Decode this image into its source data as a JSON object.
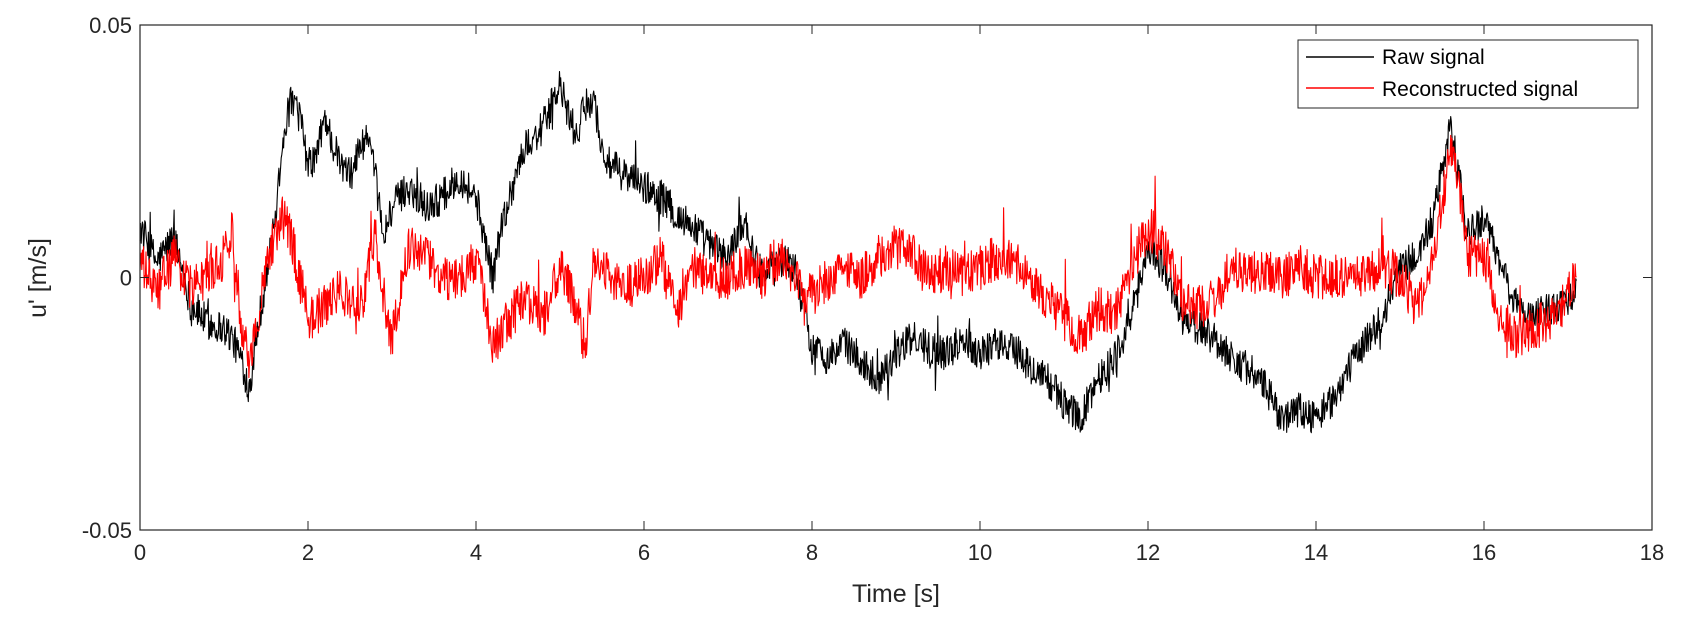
{
  "chart_data": {
    "type": "line",
    "title": "",
    "xlabel": "Time [s]",
    "ylabel": "u' [m/s]",
    "xlim": [
      0,
      18
    ],
    "ylim": [
      -0.05,
      0.05
    ],
    "xticks": [
      0,
      2,
      4,
      6,
      8,
      10,
      12,
      14,
      16,
      18
    ],
    "xtick_labels": [
      "0",
      "2",
      "4",
      "6",
      "8",
      "10",
      "12",
      "14",
      "16",
      "18"
    ],
    "yticks": [
      -0.05,
      0,
      0.05
    ],
    "ytick_labels": [
      "-0.05",
      "0",
      "0.05"
    ],
    "grid": false,
    "legend_position": "top-right",
    "series": [
      {
        "name": "Raw signal",
        "color": "#000000",
        "noise": 0.0035,
        "x": [
          0,
          0.2,
          0.4,
          0.5,
          0.6,
          0.8,
          1.0,
          1.1,
          1.2,
          1.3,
          1.4,
          1.5,
          1.6,
          1.7,
          1.8,
          1.9,
          2.0,
          2.1,
          2.2,
          2.3,
          2.4,
          2.5,
          2.6,
          2.7,
          2.8,
          2.9,
          3.0,
          3.2,
          3.4,
          3.6,
          3.8,
          4.0,
          4.1,
          4.2,
          4.3,
          4.4,
          4.5,
          4.6,
          4.7,
          4.8,
          4.9,
          5.0,
          5.1,
          5.2,
          5.3,
          5.4,
          5.5,
          5.6,
          5.8,
          6.0,
          6.2,
          6.4,
          6.6,
          6.8,
          7.0,
          7.1,
          7.2,
          7.3,
          7.4,
          7.6,
          7.8,
          8.0,
          8.2,
          8.4,
          8.6,
          8.8,
          9.0,
          9.2,
          9.4,
          9.6,
          9.8,
          10.0,
          10.2,
          10.4,
          10.6,
          10.8,
          11.0,
          11.2,
          11.4,
          11.6,
          11.8,
          12.0,
          12.2,
          12.4,
          12.6,
          12.8,
          13.0,
          13.2,
          13.4,
          13.6,
          13.8,
          14.0,
          14.2,
          14.4,
          14.6,
          14.8,
          15.0,
          15.2,
          15.4,
          15.6,
          15.7,
          15.8,
          16.0,
          16.2,
          16.4,
          16.6,
          16.8,
          17.0,
          17.1
        ],
        "y": [
          0.01,
          0.003,
          0.008,
          0.002,
          -0.005,
          -0.009,
          -0.01,
          -0.012,
          -0.016,
          -0.022,
          -0.01,
          0.0,
          0.01,
          0.028,
          0.035,
          0.032,
          0.022,
          0.024,
          0.032,
          0.026,
          0.022,
          0.02,
          0.025,
          0.028,
          0.02,
          0.008,
          0.014,
          0.018,
          0.014,
          0.016,
          0.02,
          0.016,
          0.008,
          0.0,
          0.01,
          0.016,
          0.022,
          0.026,
          0.028,
          0.03,
          0.034,
          0.038,
          0.032,
          0.028,
          0.034,
          0.036,
          0.025,
          0.022,
          0.02,
          0.018,
          0.016,
          0.012,
          0.01,
          0.006,
          0.004,
          0.008,
          0.012,
          0.004,
          0.002,
          0.004,
          0.002,
          -0.014,
          -0.016,
          -0.013,
          -0.017,
          -0.02,
          -0.015,
          -0.012,
          -0.014,
          -0.015,
          -0.012,
          -0.015,
          -0.013,
          -0.014,
          -0.018,
          -0.02,
          -0.025,
          -0.028,
          -0.02,
          -0.016,
          -0.008,
          0.006,
          0.002,
          -0.008,
          -0.01,
          -0.012,
          -0.016,
          -0.018,
          -0.022,
          -0.028,
          -0.026,
          -0.028,
          -0.024,
          -0.018,
          -0.012,
          -0.008,
          0.002,
          0.004,
          0.012,
          0.03,
          0.02,
          0.008,
          0.012,
          0.002,
          -0.006,
          -0.008,
          -0.006,
          -0.004,
          -0.002
        ]
      },
      {
        "name": "Reconstructed signal",
        "color": "#ff0000",
        "noise": 0.0045,
        "x": [
          0,
          0.2,
          0.4,
          0.6,
          0.8,
          1.0,
          1.1,
          1.2,
          1.3,
          1.4,
          1.5,
          1.6,
          1.7,
          1.8,
          1.9,
          2.0,
          2.2,
          2.4,
          2.6,
          2.8,
          2.9,
          3.0,
          3.2,
          3.4,
          3.6,
          3.8,
          4.0,
          4.2,
          4.4,
          4.6,
          4.8,
          5.0,
          5.2,
          5.3,
          5.4,
          5.6,
          5.8,
          6.0,
          6.2,
          6.4,
          6.6,
          6.8,
          7.0,
          7.2,
          7.4,
          7.6,
          7.8,
          8.0,
          8.2,
          8.4,
          8.6,
          8.8,
          9.0,
          9.2,
          9.4,
          9.6,
          9.8,
          10.0,
          10.2,
          10.4,
          10.6,
          10.8,
          11.0,
          11.2,
          11.4,
          11.6,
          11.8,
          12.0,
          12.2,
          12.4,
          12.6,
          12.8,
          13.0,
          13.2,
          13.4,
          13.6,
          13.8,
          14.0,
          14.2,
          14.4,
          14.6,
          14.8,
          15.0,
          15.2,
          15.4,
          15.6,
          15.7,
          15.8,
          16.0,
          16.2,
          16.4,
          16.6,
          16.8,
          17.0,
          17.1
        ],
        "y": [
          0.003,
          -0.003,
          0.004,
          -0.002,
          0.0,
          0.004,
          0.01,
          -0.008,
          -0.016,
          -0.01,
          0.004,
          0.008,
          0.012,
          0.008,
          0.0,
          -0.008,
          -0.006,
          -0.002,
          -0.008,
          0.008,
          -0.004,
          -0.012,
          0.006,
          0.004,
          0.0,
          0.0,
          0.004,
          -0.014,
          -0.008,
          -0.004,
          -0.008,
          0.002,
          -0.006,
          -0.014,
          0.004,
          0.0,
          -0.002,
          0.0,
          0.004,
          -0.008,
          0.002,
          0.0,
          0.0,
          0.002,
          0.0,
          0.004,
          0.0,
          -0.004,
          0.0,
          0.002,
          0.0,
          0.004,
          0.006,
          0.004,
          0.0,
          0.002,
          0.0,
          0.002,
          0.004,
          0.004,
          0.0,
          -0.004,
          -0.008,
          -0.012,
          -0.006,
          -0.008,
          0.002,
          0.01,
          0.006,
          -0.004,
          -0.006,
          -0.004,
          0.002,
          0.0,
          0.002,
          0.0,
          0.002,
          0.0,
          0.0,
          0.0,
          0.0,
          0.002,
          0.0,
          -0.006,
          0.004,
          0.025,
          0.018,
          0.004,
          0.004,
          -0.008,
          -0.012,
          -0.01,
          -0.008,
          -0.004,
          0.002
        ]
      }
    ]
  }
}
